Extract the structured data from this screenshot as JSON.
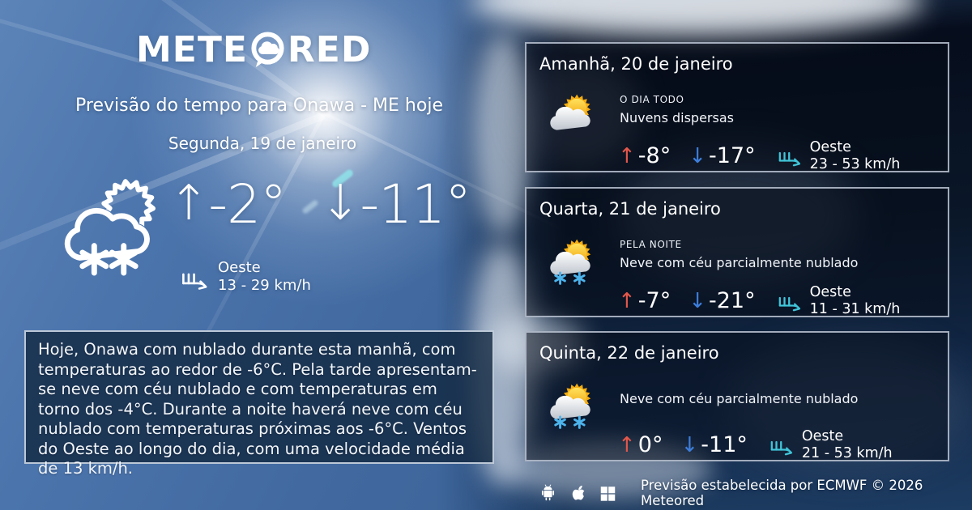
{
  "logo": {
    "part1": "METE",
    "part2": "RED"
  },
  "header": {
    "title": "Previsão do tempo para Onawa - ME hoje",
    "date": "Segunda, 19 de janeiro"
  },
  "current": {
    "icon": "snow-sun-cloud",
    "max": "-2°",
    "min": "-11°",
    "wind": {
      "direction": "Oeste",
      "speed": "13 - 29 km/h"
    }
  },
  "summary": "Hoje, Onawa com nublado durante esta manhã, com temperaturas ao redor de -6°C. Pela tarde apresentam-se neve com céu nublado e com temperaturas em torno dos -4°C. Durante a noite haverá neve com céu nublado com temperaturas próximas aos -6°C. Ventos do Oeste ao longo do dia, com uma velocidade média de 13 km/h.",
  "forecast": [
    {
      "title": "Amanhã, 20 de janeiro",
      "period": "O DIA TODO",
      "description": "Nuvens dispersas",
      "icon": "sun-cloud",
      "max": "-8°",
      "min": "-17°",
      "wind": {
        "direction": "Oeste",
        "speed": "23 - 53 km/h"
      }
    },
    {
      "title": "Quarta, 21 de janeiro",
      "period": "PELA NOITE",
      "description": "Neve com céu parcialmente nublado",
      "icon": "sun-cloud-snow",
      "max": "-7°",
      "min": "-21°",
      "wind": {
        "direction": "Oeste",
        "speed": "11 - 31 km/h"
      }
    },
    {
      "title": "Quinta, 22 de janeiro",
      "period": "",
      "description": "Neve com céu parcialmente nublado",
      "icon": "sun-cloud-snow",
      "max": "0°",
      "min": "-11°",
      "wind": {
        "direction": "Oeste",
        "speed": "21 - 53 km/h"
      }
    }
  ],
  "footer": {
    "platforms": [
      "android",
      "apple",
      "windows"
    ],
    "attribution": "Previsão estabelecida por ECMWF © 2026 Meteored"
  },
  "glyphs": {
    "up_arrow": "↑",
    "down_arrow": "↓"
  },
  "colors": {
    "accent-max": "#e4574b",
    "accent-min": "#3d7edb",
    "accent-wind": "#41c4d8",
    "card-border": "#bcc6d5"
  }
}
